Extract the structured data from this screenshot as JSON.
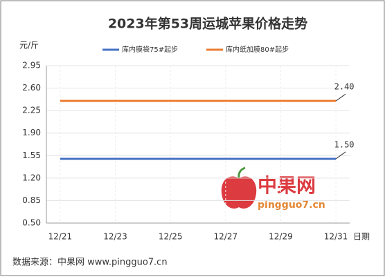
{
  "chart_data": {
    "type": "line",
    "title": "2023年第53周运城苹果价格走势",
    "y_label": "元/斤",
    "x_label": "日期",
    "categories": [
      "12/21",
      null,
      "12/23",
      null,
      "12/25",
      null,
      "12/27",
      null,
      "12/29",
      null,
      "12/31"
    ],
    "series": [
      {
        "name": "库内膜袋75#起步",
        "color": "#4472c4",
        "values": [
          1.5,
          1.5,
          1.5,
          1.5,
          1.5,
          1.5,
          1.5,
          1.5,
          1.5,
          1.5,
          1.5
        ],
        "value_labels": [
          null,
          null,
          null,
          null,
          null,
          null,
          null,
          null,
          null,
          null,
          "1.50"
        ]
      },
      {
        "name": "库内纸加膜80#起步",
        "color": "#ed7d31",
        "values": [
          2.4,
          2.4,
          2.4,
          2.4,
          2.4,
          2.4,
          2.4,
          2.4,
          2.4,
          2.4,
          2.4
        ],
        "value_labels": [
          null,
          null,
          null,
          null,
          null,
          null,
          null,
          null,
          null,
          null,
          "2.40"
        ]
      }
    ],
    "ylim": [
      0.5,
      2.95
    ],
    "yticks": [
      {
        "value": 0.5,
        "label": "0.50"
      },
      0.85,
      {
        "value": 1.2,
        "label": "1.20"
      },
      1.55,
      {
        "value": 1.9,
        "label": "1.90"
      },
      2.25,
      {
        "value": 2.6,
        "label": "2.60"
      },
      2.95
    ],
    "grid": true,
    "legend": "top",
    "watermark": {
      "name": "中果网",
      "url": "pingguo7.cn"
    },
    "source": "数据来源：中果网 www.pingguo7.cn"
  }
}
